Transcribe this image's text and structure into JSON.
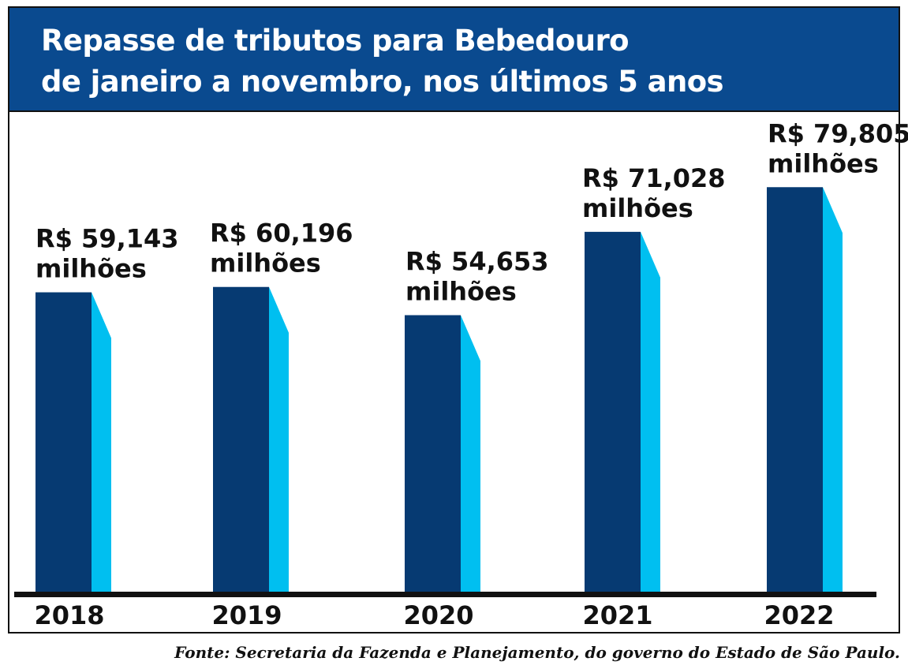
{
  "chart_data": {
    "type": "bar",
    "title": [
      "Repasse de tributos para Bebedouro",
      "de janeiro a novembro, nos últimos 5 anos"
    ],
    "categories": [
      "2018",
      "2019",
      "2020",
      "2021",
      "2022"
    ],
    "values": [
      59.143,
      60.196,
      54.653,
      71.028,
      79.805
    ],
    "value_labels": [
      [
        "R$ 59,143",
        "milhões"
      ],
      [
        "R$ 60,196",
        "milhões"
      ],
      [
        "R$ 54,653",
        "milhões"
      ],
      [
        "R$ 71,028",
        "milhões"
      ],
      [
        "R$ 79,805",
        "milhões"
      ]
    ],
    "xlabel": "",
    "ylabel": "",
    "grid": false,
    "legend": "none",
    "colors": {
      "header": "#0a4a8f",
      "bar_front": "#063a72",
      "bar_side": "#00bff0",
      "axis": "#111111"
    }
  },
  "source": "Fonte: Secretaria da Fazenda e Planejamento, do governo do Estado de São Paulo."
}
